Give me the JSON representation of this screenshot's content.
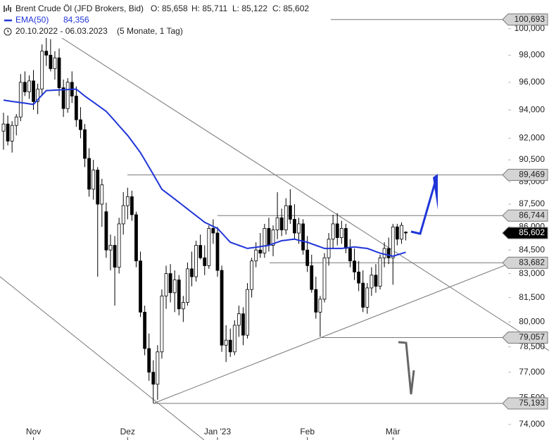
{
  "chart_data": {
    "type": "candlestick",
    "title": "Brent Crude Öl (JFD Brokers, Bid)",
    "ohlc_labels": [
      "O: 85,658",
      "H: 85,711",
      "L: 85,122",
      "C: 85,602"
    ],
    "subtitle": "20.10.2022 - 06.03.2023",
    "period": "(5 Monate, 1 Tag)",
    "log_scale": true,
    "up_color": "#ffffff",
    "down_color": "#000000",
    "ylim": [
      73.13,
      102.2
    ],
    "xlim": [
      -0.82,
      117.6
    ],
    "yticks": [
      {
        "value": 100,
        "label": "100,000"
      },
      {
        "value": 98,
        "label": "98,000"
      },
      {
        "value": 96,
        "label": "96,000"
      },
      {
        "value": 94,
        "label": "94,000"
      },
      {
        "value": 92,
        "label": "92,000"
      },
      {
        "value": 90.5,
        "label": "90,500"
      },
      {
        "value": 89,
        "label": "89,000"
      },
      {
        "value": 87.5,
        "label": "87,500"
      },
      {
        "value": 86,
        "label": "86,000"
      },
      {
        "value": 84.5,
        "label": "84,500"
      },
      {
        "value": 83,
        "label": "83,000"
      },
      {
        "value": 81.5,
        "label": "81,500"
      },
      {
        "value": 80,
        "label": "80,000"
      },
      {
        "value": 78.5,
        "label": "78,500"
      },
      {
        "value": 77,
        "label": "77,000"
      },
      {
        "value": 75.5,
        "label": "75,500"
      },
      {
        "value": 74,
        "label": "74,000"
      }
    ],
    "xticks": [
      {
        "value": 7,
        "label": "Nov"
      },
      {
        "value": 29,
        "label": "Dez"
      },
      {
        "value": 50,
        "label": "Jan '23"
      },
      {
        "value": 71,
        "label": "Feb"
      },
      {
        "value": 91,
        "label": "Mär"
      }
    ],
    "ohlc": [
      [
        92.5,
        93.8,
        91.2,
        93.0
      ],
      [
        93.0,
        93.6,
        91.5,
        91.8
      ],
      [
        91.8,
        93.2,
        91.0,
        92.9
      ],
      [
        92.9,
        93.7,
        92.2,
        93.5
      ],
      [
        93.5,
        96.6,
        93.2,
        96.0
      ],
      [
        96.0,
        96.8,
        95.0,
        95.3
      ],
      [
        95.3,
        96.5,
        94.8,
        96.1
      ],
      [
        96.1,
        96.9,
        94.0,
        94.6
      ],
      [
        94.6,
        95.9,
        93.7,
        95.5
      ],
      [
        95.5,
        98.8,
        95.0,
        98.3
      ],
      [
        98.3,
        100.0,
        97.2,
        98.0
      ],
      [
        98.0,
        99.2,
        96.8,
        97.0
      ],
      [
        97.0,
        98.3,
        96.2,
        97.8
      ],
      [
        97.8,
        98.5,
        95.0,
        95.6
      ],
      [
        95.6,
        96.2,
        93.5,
        94.1
      ],
      [
        94.1,
        96.3,
        93.8,
        96.0
      ],
      [
        96.0,
        96.8,
        94.5,
        95.0
      ],
      [
        95.0,
        95.7,
        92.8,
        93.3
      ],
      [
        93.3,
        94.2,
        92.0,
        92.6
      ],
      [
        92.6,
        93.0,
        90.0,
        90.6
      ],
      [
        90.6,
        91.3,
        88.0,
        88.5
      ],
      [
        88.5,
        90.5,
        87.8,
        89.8
      ],
      [
        89.8,
        90.0,
        82.8,
        87.5
      ],
      [
        87.5,
        89.2,
        86.0,
        88.8
      ],
      [
        87.0,
        87.6,
        84.0,
        84.5
      ],
      [
        84.5,
        85.5,
        83.2,
        84.8
      ],
      [
        84.8,
        85.4,
        81.0,
        83.4
      ],
      [
        83.4,
        86.6,
        83.0,
        86.2
      ],
      [
        86.2,
        88.3,
        85.5,
        87.4
      ],
      [
        87.4,
        88.6,
        86.5,
        88.0
      ],
      [
        88.0,
        88.4,
        86.4,
        86.8
      ],
      [
        86.8,
        87.0,
        83.4,
        83.8
      ],
      [
        83.8,
        84.4,
        80.3,
        80.6
      ],
      [
        80.6,
        81.0,
        78.0,
        78.4
      ],
      [
        78.4,
        79.3,
        76.5,
        77.0
      ],
      [
        77.0,
        77.7,
        75.2,
        76.3
      ],
      [
        76.3,
        78.6,
        75.4,
        78.2
      ],
      [
        78.2,
        82.0,
        77.8,
        81.6
      ],
      [
        81.6,
        83.5,
        80.8,
        83.0
      ],
      [
        83.0,
        83.6,
        81.2,
        81.8
      ],
      [
        81.8,
        83.2,
        80.6,
        82.6
      ],
      [
        82.6,
        82.9,
        80.4,
        80.8
      ],
      [
        80.8,
        81.6,
        80.0,
        81.2
      ],
      [
        81.2,
        83.7,
        81.0,
        83.3
      ],
      [
        83.3,
        84.4,
        82.2,
        82.8
      ],
      [
        82.8,
        85.1,
        82.5,
        84.8
      ],
      [
        84.8,
        85.5,
        83.9,
        84.0
      ],
      [
        84.0,
        84.8,
        82.9,
        83.5
      ],
      [
        83.5,
        86.1,
        83.3,
        85.9
      ],
      [
        85.9,
        86.5,
        84.9,
        85.6
      ],
      [
        85.6,
        86.0,
        82.8,
        83.2
      ],
      [
        83.2,
        83.5,
        78.2,
        78.6
      ],
      [
        78.6,
        79.8,
        77.6,
        78.9
      ],
      [
        78.9,
        79.6,
        77.9,
        78.2
      ],
      [
        78.2,
        80.1,
        78.0,
        79.8
      ],
      [
        79.8,
        81.0,
        79.1,
        80.5
      ],
      [
        80.5,
        80.9,
        78.6,
        79.2
      ],
      [
        79.2,
        82.4,
        79.0,
        82.0
      ],
      [
        82.0,
        84.0,
        81.5,
        83.8
      ],
      [
        83.8,
        85.0,
        83.4,
        84.5
      ],
      [
        84.5,
        85.6,
        84.0,
        84.3
      ],
      [
        84.3,
        86.2,
        84.0,
        85.9
      ],
      [
        85.9,
        86.6,
        84.4,
        84.8
      ],
      [
        84.8,
        86.1,
        84.1,
        85.8
      ],
      [
        85.8,
        88.3,
        85.2,
        86.6
      ],
      [
        86.6,
        87.2,
        85.4,
        85.8
      ],
      [
        85.8,
        87.9,
        85.5,
        87.4
      ],
      [
        87.4,
        88.5,
        86.2,
        86.5
      ],
      [
        86.5,
        87.5,
        85.2,
        85.6
      ],
      [
        85.6,
        86.6,
        84.9,
        86.2
      ],
      [
        86.2,
        86.5,
        84.2,
        84.5
      ],
      [
        84.5,
        85.4,
        83.1,
        83.5
      ],
      [
        83.5,
        84.2,
        81.8,
        82.0
      ],
      [
        82.0,
        82.8,
        80.2,
        80.6
      ],
      [
        80.6,
        81.6,
        79.1,
        81.4
      ],
      [
        81.4,
        84.3,
        81.2,
        84.0
      ],
      [
        84.0,
        85.6,
        83.5,
        85.2
      ],
      [
        85.2,
        86.8,
        84.6,
        86.2
      ],
      [
        86.2,
        86.9,
        84.8,
        85.3
      ],
      [
        85.3,
        86.4,
        84.9,
        85.9
      ],
      [
        85.9,
        86.2,
        84.3,
        84.6
      ],
      [
        84.6,
        85.2,
        83.4,
        83.8
      ],
      [
        83.8,
        84.6,
        82.6,
        83.1
      ],
      [
        83.1,
        83.8,
        81.9,
        82.4
      ],
      [
        82.4,
        83.2,
        80.6,
        80.9
      ],
      [
        80.9,
        82.4,
        80.5,
        82.1
      ],
      [
        82.1,
        83.4,
        81.6,
        82.9
      ],
      [
        82.9,
        83.6,
        81.8,
        82.2
      ],
      [
        82.2,
        84.2,
        82.0,
        84.0
      ],
      [
        84.0,
        85.0,
        83.4,
        84.6
      ],
      [
        84.6,
        85.3,
        83.6,
        84.0
      ],
      [
        84.0,
        86.2,
        82.3,
        86.0
      ],
      [
        86.0,
        86.2,
        84.8,
        85.2
      ],
      [
        85.2,
        86.3,
        84.9,
        86.1
      ],
      [
        85.658,
        85.711,
        85.122,
        85.602
      ]
    ],
    "last_label": "85,602",
    "series": [
      {
        "name": "EMA(50)",
        "color": "#1f35d8",
        "value_label": "84,356",
        "values": [
          94.7,
          94.66,
          94.61,
          94.57,
          94.53,
          94.49,
          94.44,
          94.4,
          94.73,
          95.07,
          95.4,
          95.41,
          95.43,
          95.44,
          95.46,
          95.47,
          95.49,
          95.5,
          95.25,
          95.0,
          94.78,
          94.56,
          94.34,
          94.12,
          93.9,
          93.56,
          93.22,
          92.88,
          92.54,
          92.2,
          91.8,
          91.4,
          91.0,
          90.5,
          90.0,
          89.5,
          89.0,
          88.5,
          88.28,
          88.06,
          87.84,
          87.62,
          87.4,
          87.18,
          86.96,
          86.74,
          86.52,
          86.3,
          86.17,
          86.03,
          85.9,
          85.6,
          85.3,
          85.0,
          84.9,
          84.8,
          84.7,
          84.6,
          84.64,
          84.68,
          84.72,
          84.76,
          84.8,
          84.9,
          85.0,
          85.1,
          85.13,
          85.17,
          85.2,
          85.13,
          85.07,
          85.0,
          84.9,
          84.8,
          84.7,
          84.6,
          84.6,
          84.6,
          84.6,
          84.6,
          84.63,
          84.67,
          84.7,
          84.67,
          84.63,
          84.6,
          84.5,
          84.4,
          84.3,
          84.23,
          84.17,
          84.1,
          84.19,
          84.27,
          84.356
        ]
      }
    ],
    "levels": [
      {
        "value": 100.693,
        "label": "100,693"
      },
      {
        "value": 89.469,
        "label": "89,469"
      },
      {
        "value": 86.744,
        "label": "86,744"
      },
      {
        "value": 83.682,
        "label": "83,682"
      },
      {
        "value": 79.057,
        "label": "79,057"
      },
      {
        "value": 75.193,
        "label": "75,193"
      }
    ]
  }
}
